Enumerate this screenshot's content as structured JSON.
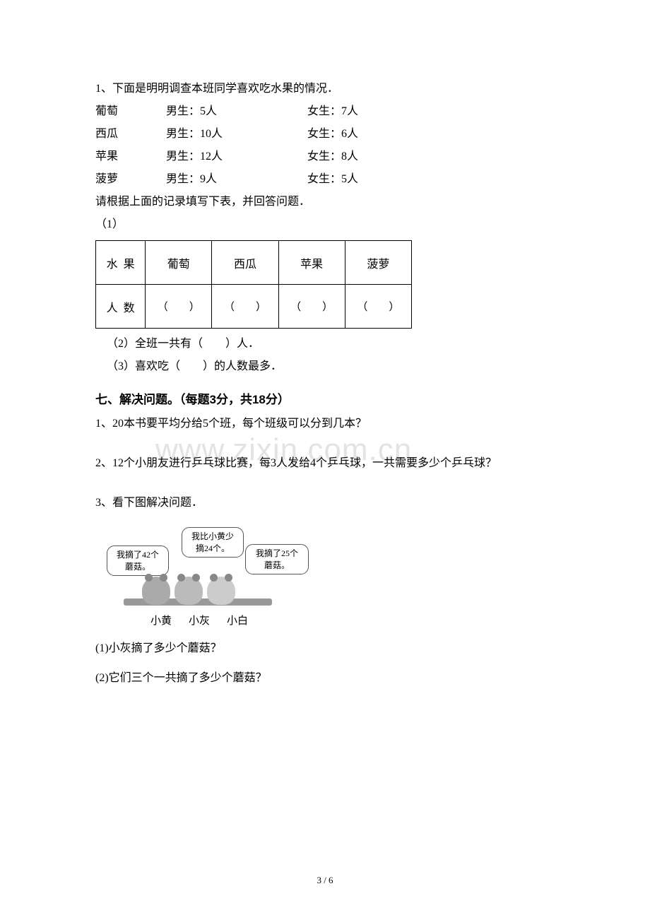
{
  "q1": {
    "intro": "1、下面是明明调查本班同学喜欢吃水果的情况．",
    "rows": [
      {
        "fruit": "葡萄",
        "male": "男生：5人",
        "female": "女生：7人"
      },
      {
        "fruit": "西瓜",
        "male": "男生：10人",
        "female": "女生：6人"
      },
      {
        "fruit": "苹果",
        "male": "男生：12人",
        "female": "女生：8人"
      },
      {
        "fruit": "菠萝",
        "male": "男生：9人",
        "female": "女生：5人"
      }
    ],
    "instruction": "请根据上面的记录填写下表，并回答问题．",
    "sub1": "（1）",
    "table": {
      "header_left": "水果",
      "headers": [
        "葡萄",
        "西瓜",
        "苹果",
        "菠萝"
      ],
      "row_label": "人数",
      "blank": "（　　）"
    },
    "sub2": "（2）全班一共有（　　）人．",
    "sub3": "（3）喜欢吃（　　）的人数最多．"
  },
  "section7": {
    "title": "七、解决问题。（每题3分，共18分）",
    "q1": "1、20本书要平均分给5个班，每个班级可以分到几本？",
    "q2": "2、12个小朋友进行乒乓球比赛，每3人发给4个乒乓球，一共需要多少个乒乓球？",
    "q3": "3、看下图解决问题．",
    "bubble1_l1": "我摘了42个",
    "bubble1_l2": "蘑菇。",
    "bubble2_l1": "我比小黄少",
    "bubble2_l2": "摘24个。",
    "bubble3_l1": "我摘了25个",
    "bubble3_l2": "蘑菇。",
    "labels": [
      "小黄",
      "小灰",
      "小白"
    ],
    "q3_1": "(1)小灰摘了多少个蘑菇？",
    "q3_2": "(2)它们三个一共摘了多少个蘑菇？"
  },
  "watermark": "www.zixin.com.cn",
  "page_num": "3 / 6"
}
